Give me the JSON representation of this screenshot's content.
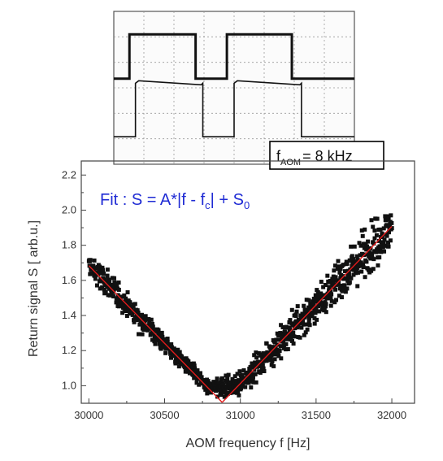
{
  "chart_data": [
    {
      "type": "scatter",
      "xlabel": "AOM frequency f  [Hz]",
      "ylabel": "Return signal  S   [ arb.u.]",
      "xlim": [
        29950,
        32150
      ],
      "ylim": [
        0.9,
        2.28
      ],
      "x_ticks": [
        "30000",
        "30500",
        "31000",
        "31500",
        "32000"
      ],
      "y_ticks": [
        "1.0",
        "1.2",
        "1.4",
        "1.6",
        "1.8",
        "2.0",
        "2.2"
      ],
      "grid": false,
      "annotation": {
        "parts": [
          "Fit : S = A*|f - f",
          "c",
          "| + S",
          "0"
        ]
      },
      "fit": {
        "fc": 30880,
        "S0": 0.905,
        "A_left": 0.000885,
        "A_right": 0.000895,
        "color": "#e21b1b"
      },
      "noise": {
        "scatter_left": 0.055,
        "scatter_right": 0.08,
        "bottom_spread": 0.04
      },
      "series": [
        {
          "marker": "square",
          "color": "#111111",
          "x_start": 30000,
          "x_end": 32000,
          "n_points": 1000
        }
      ]
    },
    {
      "type": "line",
      "subtype": "oscilloscope-trace",
      "label_parts": [
        "f",
        "AOM",
        "= 8 kHz"
      ],
      "traces": [
        {
          "name": "upper",
          "levels": [
            1.0,
            0.0
          ],
          "segments": [
            [
              0.0,
              0.065,
              0
            ],
            [
              0.065,
              0.34,
              1
            ],
            [
              0.34,
              0.47,
              0
            ],
            [
              0.47,
              0.74,
              1
            ],
            [
              0.74,
              1.0,
              0
            ]
          ]
        },
        {
          "name": "lower",
          "levels": [
            1.0,
            0.0
          ],
          "segments": [
            [
              0.0,
              0.09,
              0
            ],
            [
              0.09,
              0.37,
              1
            ],
            [
              0.37,
              0.5,
              0
            ],
            [
              0.5,
              0.78,
              1
            ],
            [
              0.78,
              1.0,
              0
            ]
          ]
        }
      ]
    }
  ]
}
